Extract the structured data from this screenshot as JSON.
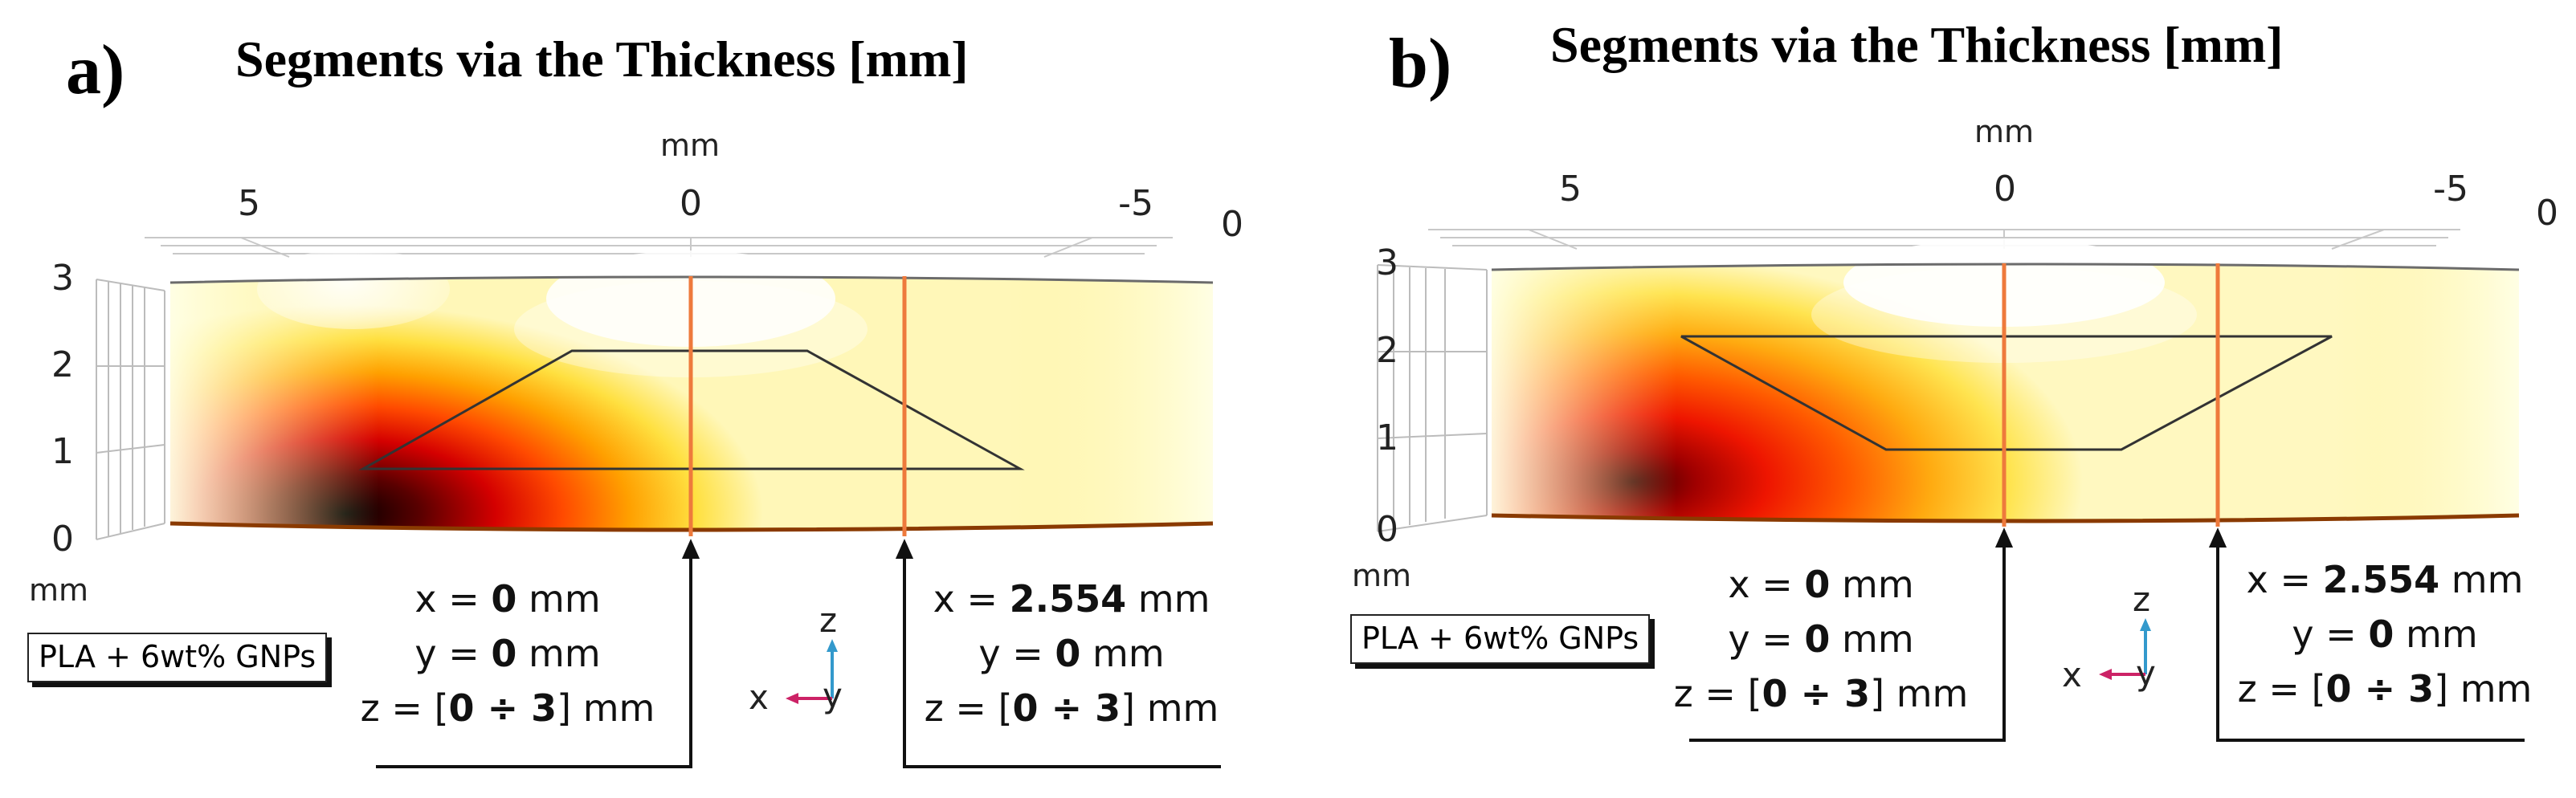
{
  "panel_a": {
    "letter": "a)",
    "title": "Segments via the Thickness [mm]",
    "top_axis_unit": "mm",
    "top_ticks": [
      "5",
      "0",
      "-5",
      "0"
    ],
    "left_ticks": [
      "3",
      "2",
      "1",
      "0"
    ],
    "left_axis_unit": "mm",
    "material": "PLA + 6wt% GNPs",
    "segment1": {
      "x_label": "x = ",
      "x_val": "0",
      "y_label": "y = ",
      "y_val": "0",
      "z_label": "z = [",
      "z_val": "0 ÷ 3",
      "unit": "mm",
      "z_unit": "] mm"
    },
    "segment2": {
      "x_label": "x = ",
      "x_val": "2.554",
      "y_label": "y = ",
      "y_val": "0",
      "z_label": "z = [",
      "z_val": "0 ÷ 3",
      "unit": "mm",
      "z_unit": "] mm"
    },
    "triad": {
      "z": "z",
      "y": "y",
      "x": "x"
    }
  },
  "panel_b": {
    "letter": "b)",
    "title": "Segments via the Thickness [mm]",
    "top_axis_unit": "mm",
    "top_ticks": [
      "5",
      "0",
      "-5",
      "0"
    ],
    "left_ticks": [
      "3",
      "2",
      "1",
      "0"
    ],
    "left_axis_unit": "mm",
    "material": "PLA + 6wt% GNPs",
    "segment1": {
      "x_label": "x = ",
      "x_val": "0",
      "y_label": "y = ",
      "y_val": "0",
      "z_label": "z = [",
      "z_val": "0 ÷ 3",
      "unit": "mm",
      "z_unit": "] mm"
    },
    "segment2": {
      "x_label": "x = ",
      "x_val": "2.554",
      "y_label": "y = ",
      "y_val": "0",
      "z_label": "z = [",
      "z_val": "0 ÷ 3",
      "unit": "mm",
      "z_unit": "] mm"
    },
    "triad": {
      "z": "z",
      "y": "y",
      "x": "x"
    }
  },
  "colors": {
    "segment_line": "#ee7a3c",
    "heat_hot": "#000000",
    "heat_mid": "#ff2a00",
    "heat_cool": "#ffffe0",
    "triad_x": "#cc2266",
    "triad_z": "#3399cc"
  }
}
